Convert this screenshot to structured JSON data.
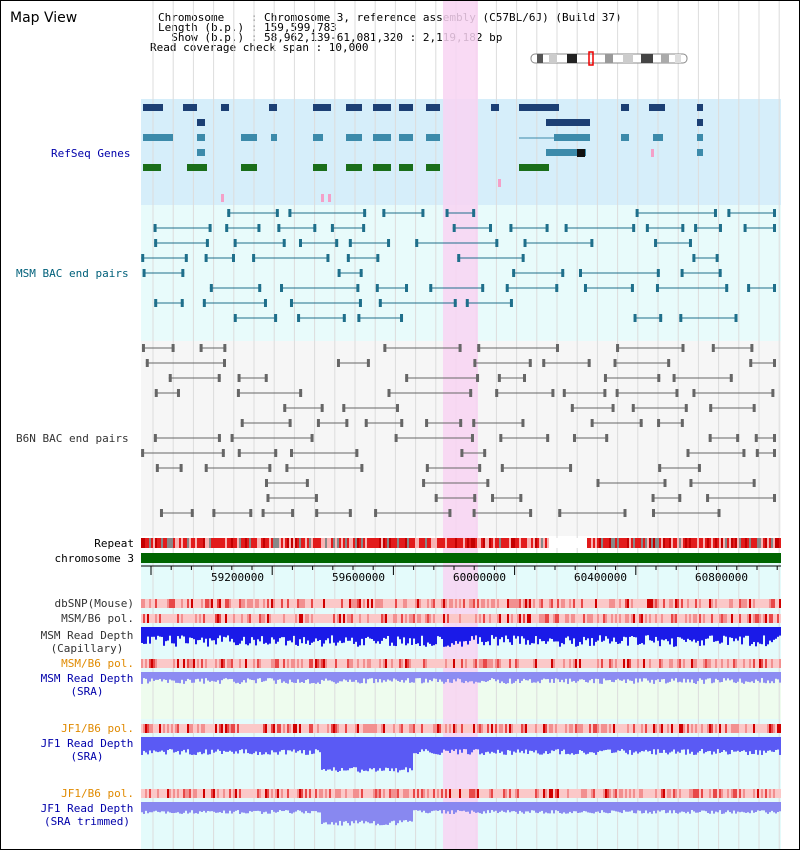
{
  "header": {
    "title": "Map View",
    "chromosome_line": "Chromosome    : Chromosome 3, reference assembly (C57BL/6J) (Build 37)",
    "length_line": "Length (b.p.) : 159,599,783",
    "show_line": "  Show (b.p.) : 58,962,139-61,081,320 : 2,119,182 bp",
    "coverage_line": "Read coverage check span : 10,000"
  },
  "tracks": {
    "refseq": "RefSeq Genes",
    "msm_bac": "MSM BAC end pairs",
    "b6n_bac": "B6N BAC end pairs",
    "repeat": "Repeat",
    "chromosome": "chromosome 3",
    "dbsnp": "dbSNP(Mouse)",
    "msm_b6_pol_1": "MSM/B6 pol.",
    "msm_depth_cap_1": "MSM Read Depth",
    "msm_depth_cap_2": "(Capillary)",
    "msm_b6_pol_2": "MSM/B6 pol.",
    "msm_depth_sra_1": "MSM Read Depth",
    "msm_depth_sra_2": "(SRA)",
    "jf1_b6_pol_1": "JF1/B6 pol.",
    "jf1_depth_sra_1": "JF1 Read Depth",
    "jf1_depth_sra_2": "(SRA)",
    "jf1_b6_pol_2": "JF1/B6 pol.",
    "jf1_depth_trim_1": "JF1 Read Depth",
    "jf1_depth_trim_2": "(SRA trimmed)"
  },
  "axis": {
    "ticks": [
      "59200000",
      "59600000",
      "60000000",
      "60400000",
      "60800000"
    ]
  },
  "colors": {
    "refseq_bg": "#d6eefa",
    "msm_bg": "#e8fbfb",
    "b6n_bg": "#f6f6f6",
    "highlight": "#f8d4f2",
    "dark_blue": "#1c3f74",
    "steel_blue": "#3c8aaa",
    "green": "#1a6e1a",
    "chromosome": "#006400",
    "label_blue": "#0000aa",
    "label_teal": "#00607a",
    "label_orange": "#e08a00"
  }
}
